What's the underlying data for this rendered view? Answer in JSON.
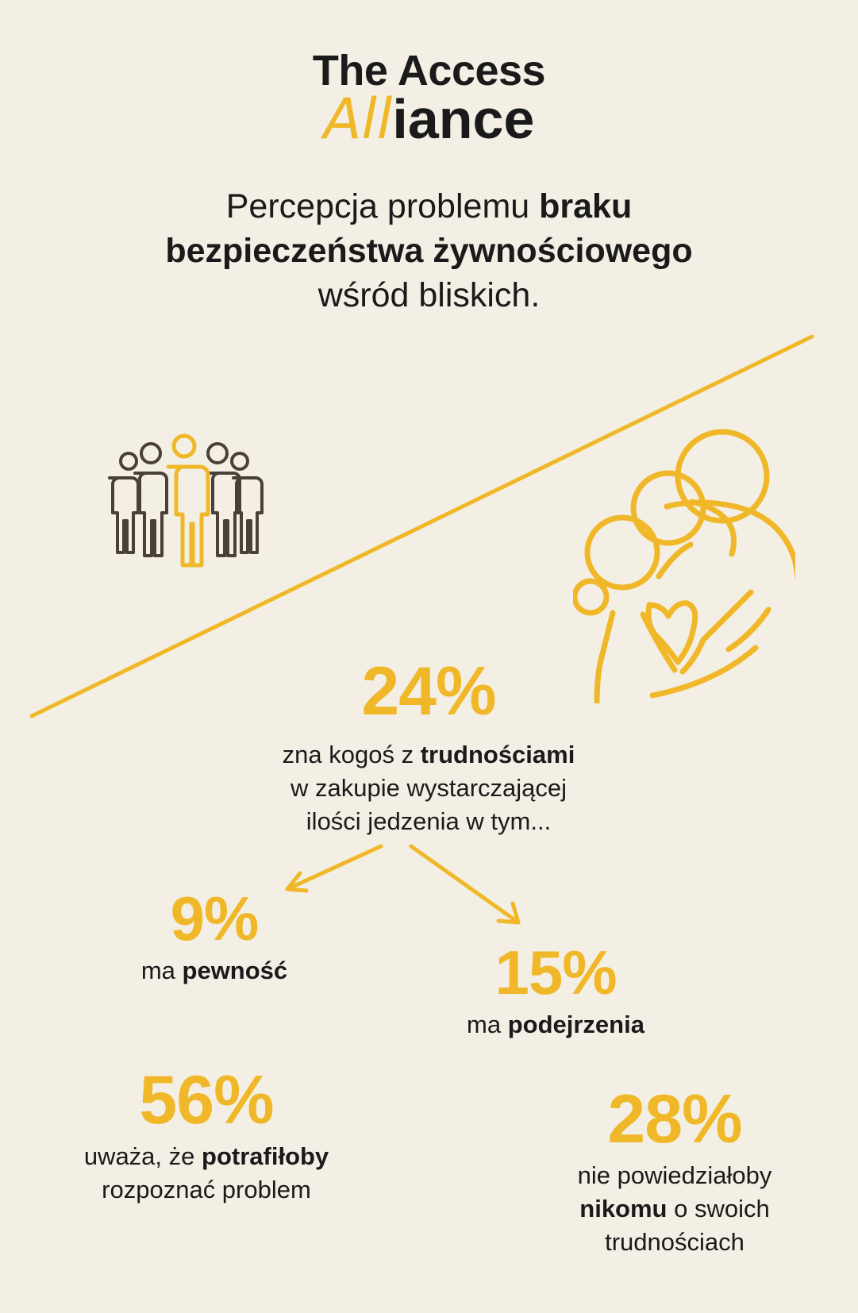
{
  "logo": {
    "line1": "The Access",
    "line2_highlight": "All",
    "line2_rest": "iance"
  },
  "title": {
    "part1": "Percepcja problemu ",
    "bold1": "braku",
    "bold2": "bezpieczeństwa żywnościowego",
    "part2": "wśród bliskich."
  },
  "colors": {
    "accent": "#f0b829",
    "background": "#f3efe4",
    "text": "#1a1a1a",
    "icon_dark": "#4a4038"
  },
  "icons": {
    "group": "people-group-icon",
    "family": "family-hug-icon"
  },
  "stat_main": {
    "value": "24%",
    "line1_pre": "zna kogoś z ",
    "line1_bold": "trudnościami",
    "line2": "w zakupie wystarczającej",
    "line3": "ilości jedzenia w tym..."
  },
  "stat_certain": {
    "value": "9%",
    "pre": "ma ",
    "bold": "pewność"
  },
  "stat_suspect": {
    "value": "15%",
    "pre": "ma ",
    "bold": "podejrzenia"
  },
  "stat_recognize": {
    "value": "56%",
    "line1_pre": "uważa, że ",
    "line1_bold": "potrafiłoby",
    "line2": "rozpoznać problem"
  },
  "stat_tell": {
    "value": "28%",
    "line1": "nie powiedziałoby",
    "line2_bold": "nikomu",
    "line2_rest": " o swoich",
    "line3": "trudnościach"
  }
}
